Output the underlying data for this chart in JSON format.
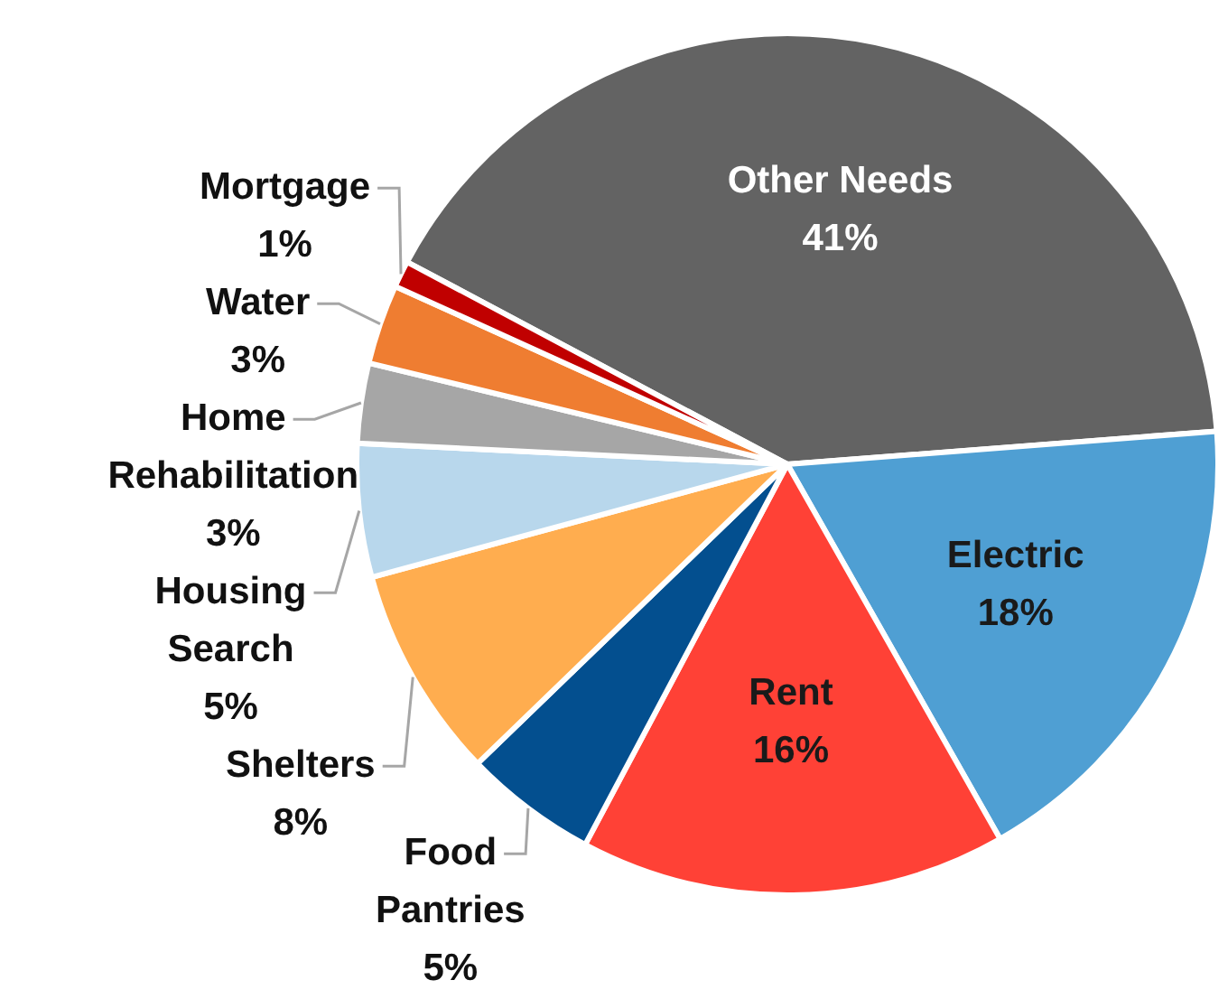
{
  "chart_data": {
    "type": "pie",
    "categories": [
      "Other Needs",
      "Electric",
      "Rent",
      "Food Pantries",
      "Shelters",
      "Housing Search",
      "Home Rehabilitation",
      "Water",
      "Mortgage"
    ],
    "values": [
      41,
      18,
      16,
      5,
      8,
      5,
      3,
      3,
      1
    ],
    "value_labels": [
      "41%",
      "18%",
      "16%",
      "5%",
      "8%",
      "5%",
      "3%",
      "3%",
      "1%"
    ],
    "colors": [
      "#636363",
      "#4f9fd3",
      "#ff4136",
      "#034f8f",
      "#ffad4f",
      "#b8d7ec",
      "#a6a6a6",
      "#ef7d31",
      "#c00000"
    ]
  }
}
